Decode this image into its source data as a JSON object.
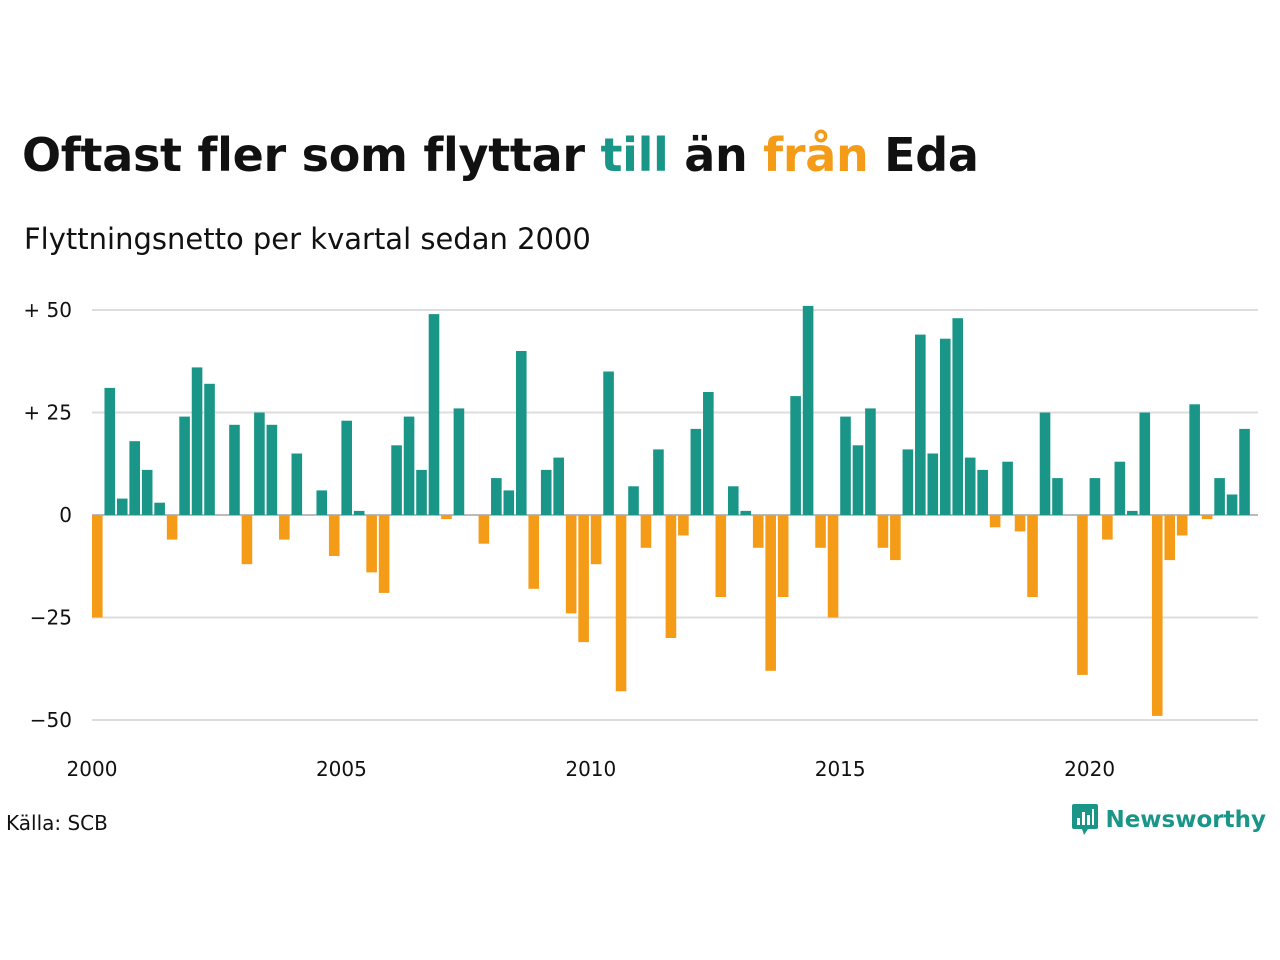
{
  "title": {
    "part1": "Oftast fler som flyttar ",
    "till": "till",
    "part2": " än ",
    "fran": "från",
    "part3": " Eda"
  },
  "subtitle": "Flyttningsnetto per kvartal sedan 2000",
  "source": "Källa: SCB",
  "brand": "Newsworthy",
  "colors": {
    "positive": "#1a9688",
    "negative": "#f49c17",
    "grid": "#dddddd"
  },
  "chart_data": {
    "type": "bar",
    "x_label_note": "quarters from 2000 Q1",
    "start_year": 2000,
    "values": [
      -25,
      31,
      4,
      18,
      11,
      3,
      -6,
      24,
      36,
      32,
      0,
      22,
      -12,
      25,
      22,
      -6,
      15,
      0,
      6,
      -10,
      23,
      1,
      -14,
      -19,
      17,
      24,
      11,
      49,
      -1,
      26,
      0,
      -7,
      9,
      6,
      40,
      -18,
      11,
      14,
      -24,
      -31,
      -12,
      35,
      -43,
      7,
      -8,
      16,
      -30,
      -5,
      21,
      30,
      -20,
      7,
      1,
      -8,
      -38,
      -20,
      29,
      51,
      -8,
      -25,
      24,
      17,
      26,
      -8,
      -11,
      16,
      44,
      15,
      43,
      48,
      14,
      11,
      -3,
      13,
      -4,
      -20,
      25,
      9,
      0,
      -39,
      9,
      -6,
      13,
      1,
      25,
      -49,
      -11,
      -5,
      27,
      -1,
      9,
      5,
      21
    ],
    "yticks": [
      50,
      25,
      0,
      -25,
      -50
    ],
    "ytick_labels": [
      "+ 50",
      "+ 25",
      "0",
      "−25",
      "−50"
    ],
    "xticks": [
      "2000",
      "2005",
      "2010",
      "2015",
      "2020"
    ],
    "ylim": [
      -50,
      50
    ],
    "grid": true
  }
}
